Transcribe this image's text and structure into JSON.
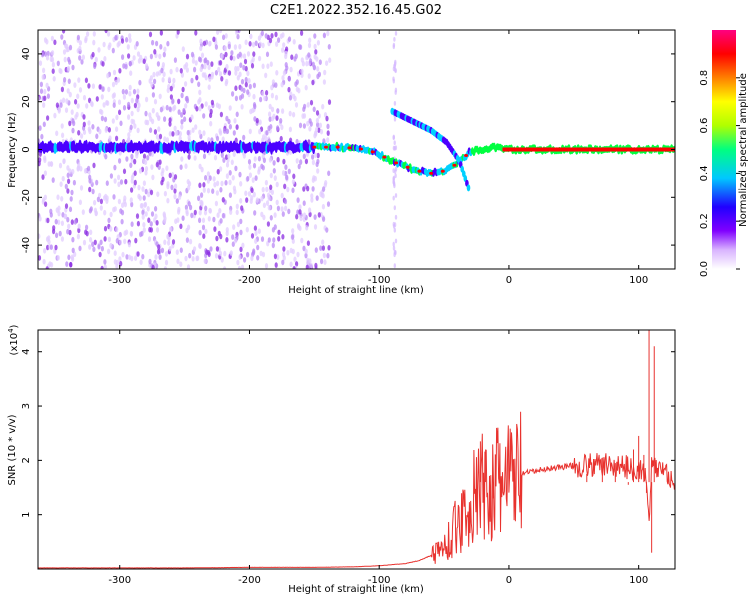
{
  "figure_title": "C2E1.2022.352.16.45.G02",
  "chart_data": [
    {
      "type": "heatmap",
      "xlabel": "Height of straight line (km)",
      "ylabel": "Frequency (Hz)",
      "xlim": [
        -363,
        128
      ],
      "ylim": [
        -50,
        50
      ],
      "x_ticks": [
        "-300",
        "-200",
        "-100",
        "0",
        "100"
      ],
      "y_ticks": [
        "-40",
        "-20",
        "0",
        "20",
        "40"
      ],
      "colorbar": {
        "label": "Normalized spectral amplitude",
        "range": [
          0.0,
          1.0
        ],
        "ticks": [
          "0.0",
          "0.2",
          "0.4",
          "0.6",
          "0.8"
        ],
        "colors": [
          "#ffffff",
          "#d9b3ff",
          "#8000ff",
          "#2000ff",
          "#00c8ff",
          "#00ff80",
          "#b0ff00",
          "#ffff00",
          "#ff8000",
          "#ff0000",
          "#ff0080"
        ]
      },
      "trace_colors": {
        "noise": "#8a2be2",
        "low": "#4b00ff",
        "mid": "#00d0ff",
        "high": "#ff0000",
        "core": "#00ff40"
      },
      "noise_region_x": [
        -363,
        -138
      ],
      "main_trace": [
        {
          "x": -363,
          "y": 1
        },
        {
          "x": -330,
          "y": 1
        },
        {
          "x": -300,
          "y": 1
        },
        {
          "x": -270,
          "y": 1
        },
        {
          "x": -240,
          "y": 1
        },
        {
          "x": -200,
          "y": 1
        },
        {
          "x": -160,
          "y": 1
        },
        {
          "x": -150,
          "y": 1
        },
        {
          "x": -130,
          "y": 1
        },
        {
          "x": -110,
          "y": 0
        },
        {
          "x": -100,
          "y": -2
        },
        {
          "x": -90,
          "y": -5
        },
        {
          "x": -80,
          "y": -7
        },
        {
          "x": -70,
          "y": -9
        },
        {
          "x": -60,
          "y": -10
        },
        {
          "x": -50,
          "y": -9
        },
        {
          "x": -40,
          "y": -6
        },
        {
          "x": -30,
          "y": -1
        },
        {
          "x": -20,
          "y": 0
        },
        {
          "x": -10,
          "y": 1
        },
        {
          "x": 0,
          "y": 0
        },
        {
          "x": 50,
          "y": 0
        },
        {
          "x": 100,
          "y": 0
        },
        {
          "x": 128,
          "y": 0
        }
      ],
      "side_branch": [
        {
          "x": -90,
          "y": 16
        },
        {
          "x": -75,
          "y": 12
        },
        {
          "x": -60,
          "y": 8
        },
        {
          "x": -48,
          "y": 3
        },
        {
          "x": -38,
          "y": -5
        },
        {
          "x": -30,
          "y": -18
        }
      ]
    },
    {
      "type": "line",
      "xlabel": "Height of straight line (km)",
      "ylabel": "SNR (10 * v/v)",
      "y_multiplier": "(x10",
      "y_multiplier_exp": "4",
      "y_multiplier_close": ")",
      "xlim": [
        -363,
        128
      ],
      "ylim": [
        0,
        4.4
      ],
      "x_ticks": [
        "-300",
        "-200",
        "-100",
        "0",
        "100"
      ],
      "y_ticks": [
        "1",
        "2",
        "3",
        "4"
      ],
      "color": "#e8322e",
      "series": [
        {
          "x": [
            -363,
            -300,
            -250,
            -200,
            -150,
            -120,
            -100,
            -80,
            -70,
            -60,
            -50,
            -45,
            -40,
            -35,
            -30,
            -25,
            -20,
            -15,
            -10,
            -5,
            0,
            5,
            10,
            20,
            30,
            40,
            50,
            60,
            70,
            80,
            90,
            95,
            100,
            103,
            106,
            108,
            110,
            112,
            115,
            120,
            128
          ],
          "y": [
            0.02,
            0.02,
            0.02,
            0.03,
            0.03,
            0.04,
            0.06,
            0.1,
            0.15,
            0.25,
            0.4,
            0.6,
            0.8,
            1.0,
            1.2,
            1.35,
            1.5,
            1.45,
            1.55,
            1.6,
            1.65,
            1.7,
            1.75,
            1.8,
            1.85,
            1.88,
            1.9,
            1.9,
            1.92,
            1.9,
            1.88,
            1.85,
            1.85,
            1.8,
            1.7,
            0.8,
            1.9,
            1.85,
            1.85,
            1.85,
            1.55
          ]
        }
      ],
      "spikes": [
        {
          "x": -22,
          "y": 2.35
        },
        {
          "x": -18,
          "y": 2.2
        },
        {
          "x": -12,
          "y": 1.3
        },
        {
          "x": 60,
          "y": 1.75
        },
        {
          "x": 72,
          "y": 2.05
        },
        {
          "x": 82,
          "y": 1.95
        },
        {
          "x": 92,
          "y": 1.55
        },
        {
          "x": 96,
          "y": 2.2
        },
        {
          "x": 100,
          "y": 2.45
        },
        {
          "x": 104,
          "y": 2.1
        },
        {
          "x": 106,
          "y": 1.4
        },
        {
          "x": 108,
          "y": 4.4
        },
        {
          "x": 110,
          "y": 0.3
        },
        {
          "x": 112,
          "y": 4.1
        }
      ]
    }
  ]
}
